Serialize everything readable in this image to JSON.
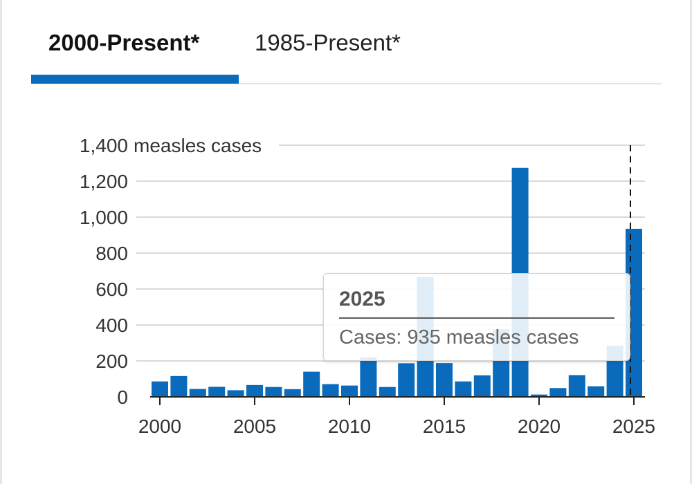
{
  "tabs": [
    {
      "label": "2000-Present*",
      "active": true
    },
    {
      "label": "1985-Present*",
      "active": false
    }
  ],
  "colors": {
    "bar": "#0a6bbd",
    "tab_indicator": "#0a6bbd",
    "grid": "#d9d9d9",
    "axis": "#222222",
    "text": "#333333"
  },
  "tooltip": {
    "year": "2025",
    "cases_text": "Cases: 935 measles cases"
  },
  "chart_data": {
    "type": "bar",
    "ylabel_suffix": "measles cases",
    "ylim": [
      0,
      1400
    ],
    "yticks": [
      0,
      200,
      400,
      600,
      800,
      1000,
      1200,
      1400
    ],
    "ytick_labels": [
      "0",
      "200",
      "400",
      "600",
      "800",
      "1,000",
      "1,200",
      "1,400"
    ],
    "xticks": [
      2000,
      2005,
      2010,
      2015,
      2020,
      2025
    ],
    "xtick_labels": [
      "2000",
      "2005",
      "2010",
      "2015",
      "2020",
      "2025"
    ],
    "grid": true,
    "highlight": 2025,
    "categories": [
      2000,
      2001,
      2002,
      2003,
      2004,
      2005,
      2006,
      2007,
      2008,
      2009,
      2010,
      2011,
      2012,
      2013,
      2014,
      2015,
      2016,
      2017,
      2018,
      2019,
      2020,
      2021,
      2022,
      2023,
      2024,
      2025
    ],
    "values": [
      86,
      116,
      44,
      56,
      37,
      66,
      55,
      43,
      140,
      71,
      63,
      220,
      55,
      187,
      667,
      188,
      86,
      120,
      375,
      1274,
      13,
      49,
      121,
      59,
      285,
      935
    ]
  }
}
